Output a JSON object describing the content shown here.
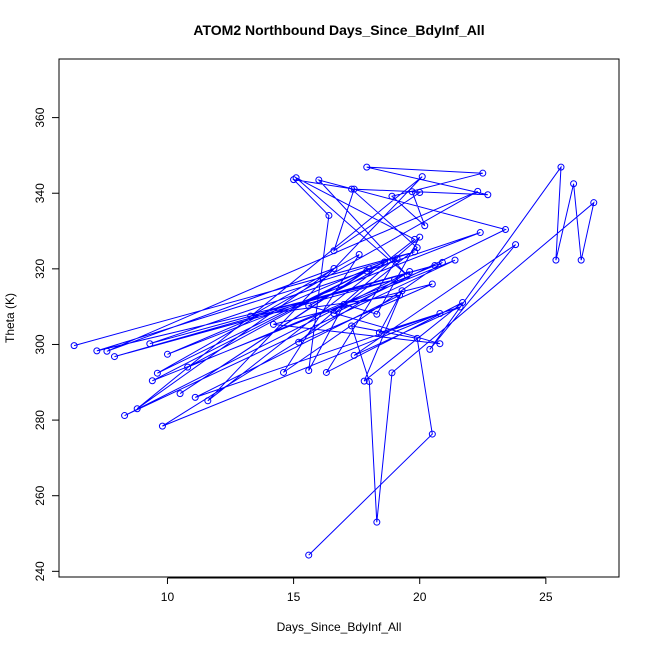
{
  "chart_data": {
    "type": "scatter",
    "title": "ATOM2 Northbound Days_Since_BdyInf_All",
    "xlabel": "Days_Since_BdyInf_All",
    "ylabel": "Theta (K)",
    "xlim": [
      5.7,
      27.9
    ],
    "ylim": [
      238.5,
      375.5
    ],
    "xticks": [
      10,
      15,
      20,
      25
    ],
    "yticks": [
      240,
      260,
      280,
      300,
      320,
      340,
      360
    ],
    "point_style": "open-circle",
    "line_connected": true,
    "grid": false,
    "legend": "none",
    "color": "#0000ff",
    "series": [
      {
        "x": [
          6.3,
          19.8,
          7.2,
          19.0,
          7.9,
          20.6,
          9.3,
          22.4,
          10.0,
          18.6,
          9.4,
          21.4,
          8.3,
          19.6,
          9.8,
          20.8,
          11.1,
          19.2,
          13.3,
          17.6,
          14.6,
          20.9,
          10.8,
          18.0,
          10.5,
          17.9,
          9.6,
          22.3,
          7.6,
          16.6,
          8.8,
          20.1,
          11.6,
          19.8,
          15.1,
          19.5,
          16.0,
          23.4,
          16.6,
          19.9,
          17.3,
          22.7,
          17.9,
          22.5,
          18.9,
          20.2,
          19.7,
          20.0,
          16.6,
          17.4,
          15.0,
          16.4,
          15.6,
          17.0,
          18.3,
          20.0,
          15.2,
          20.5,
          14.2,
          20.8,
          15.6,
          19.1,
          16.3,
          21.7,
          17.8,
          19.3,
          18.4,
          21.6,
          17.4,
          23.8,
          20.4,
          25.6,
          25.4,
          26.1,
          26.4,
          26.9,
          18.9,
          18.3,
          18.0,
          17.3,
          19.9,
          20.5,
          15.6
        ],
        "y": [
          299.7,
          324.5,
          298.3,
          317.1,
          296.8,
          320.9,
          300.2,
          329.6,
          297.4,
          321.8,
          290.4,
          322.3,
          281.2,
          319.3,
          278.4,
          308.2,
          286.0,
          313.0,
          307.5,
          323.8,
          292.6,
          321.7,
          294.0,
          320.0,
          287.0,
          319.4,
          292.4,
          340.5,
          298.2,
          320.1,
          283.0,
          344.4,
          285.1,
          327.8,
          344.1,
          318.3,
          343.5,
          330.4,
          308.2,
          325.6,
          341.1,
          339.6,
          346.9,
          345.3,
          339.2,
          331.4,
          340.4,
          340.2,
          324.8,
          341.1,
          343.6,
          334.1,
          293.1,
          310.6,
          308.0,
          328.4,
          300.6,
          316.0,
          305.3,
          300.2,
          310.2,
          322.7,
          292.6,
          311.1,
          290.3,
          314.2,
          303.1,
          309.9,
          297.1,
          326.4,
          298.7,
          346.9,
          322.3,
          342.5,
          322.3,
          337.5,
          292.5,
          253.0,
          290.2,
          304.9,
          301.6,
          276.3,
          244.3
        ]
      }
    ]
  }
}
